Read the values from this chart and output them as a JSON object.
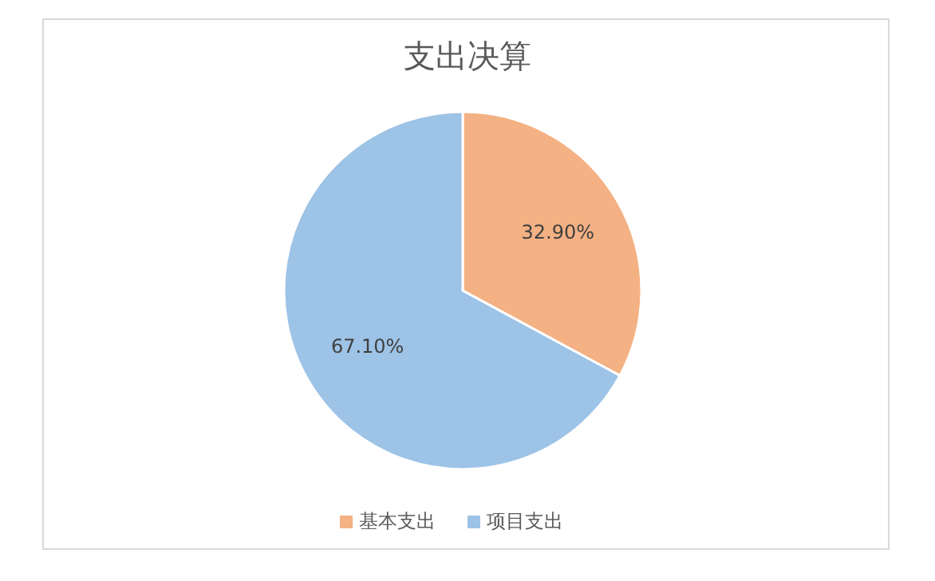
{
  "chart_data": {
    "type": "pie",
    "title": "支出决算",
    "categories": [
      "基本支出",
      "项目支出"
    ],
    "values": [
      32.9,
      67.1
    ],
    "colors": [
      "#f4b183",
      "#9dc3e6"
    ],
    "value_labels": [
      "32.90%",
      "67.10%"
    ],
    "legend": "bottom"
  }
}
